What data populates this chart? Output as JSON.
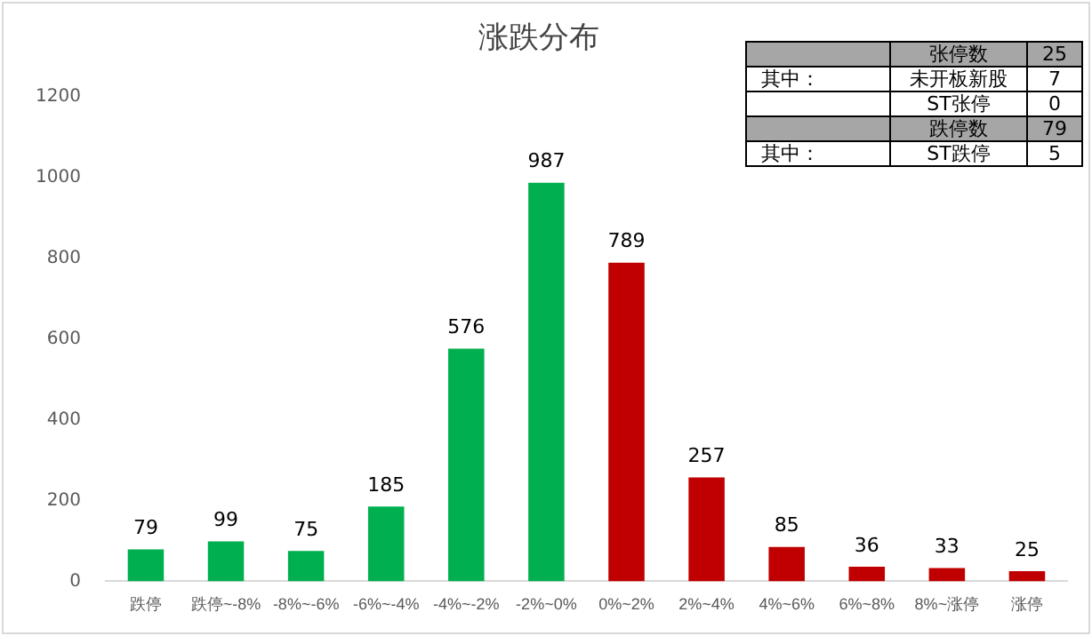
{
  "chart_data": [
    {
      "type": "bar",
      "title": "涨跌分布",
      "categories": [
        "跌停",
        "跌停~-8%",
        "-8%~-6%",
        "-6%~-4%",
        "-4%~-2%",
        "-2%~0%",
        "0%~2%",
        "2%~4%",
        "4%~6%",
        "6%~8%",
        "8%~涨停",
        "涨停"
      ],
      "values": [
        79,
        99,
        75,
        185,
        576,
        987,
        789,
        257,
        85,
        36,
        33,
        25
      ],
      "colors": [
        "#00b050",
        "#00b050",
        "#00b050",
        "#00b050",
        "#00b050",
        "#00b050",
        "#c00000",
        "#c00000",
        "#c00000",
        "#c00000",
        "#c00000",
        "#c00000"
      ],
      "ylim": [
        0,
        1200
      ],
      "yticks": [
        0,
        200,
        400,
        600,
        800,
        1000,
        1200
      ],
      "grid": false,
      "legend": false,
      "data_labels": true
    },
    {
      "type": "other",
      "annotations": [
        "张停数",
        "25",
        "其中：",
        "未开板新股",
        "7",
        "ST张停",
        "0",
        "跌停数",
        "79",
        "其中：",
        "ST跌停",
        "5"
      ]
    }
  ]
}
